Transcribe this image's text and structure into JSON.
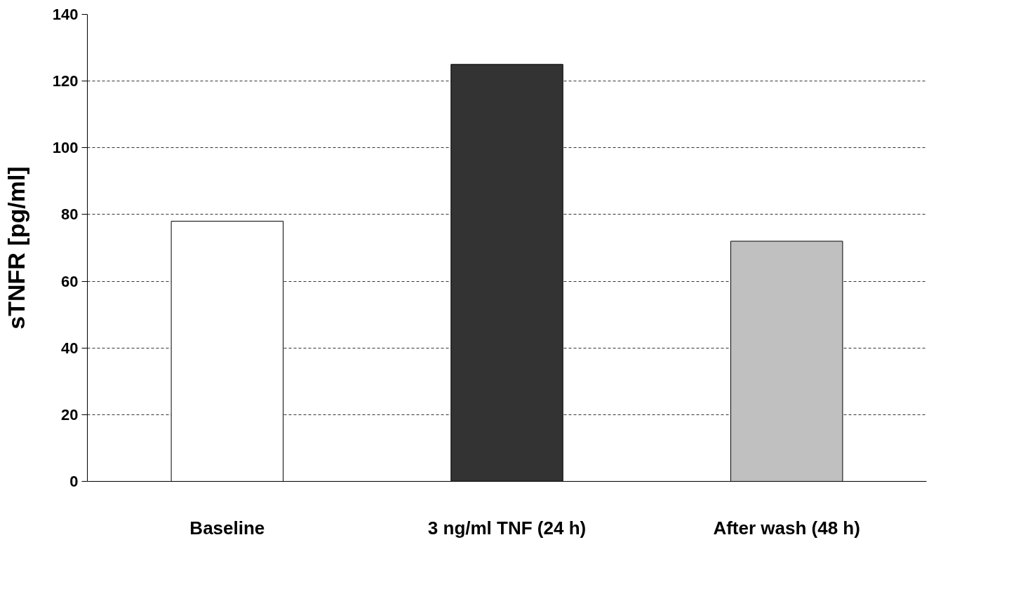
{
  "chart_data": {
    "type": "bar",
    "ylabel": "sTNFR [pg/ml]",
    "categories": [
      "Baseline",
      "3 ng/ml TNF (24 h)",
      "After wash (48 h)"
    ],
    "values": [
      78,
      125,
      72
    ],
    "colors": [
      "#ffffff",
      "#333333",
      "#c0c0c0"
    ],
    "ylim": [
      0,
      140
    ],
    "yticks": [
      0,
      20,
      40,
      60,
      80,
      100,
      120,
      140
    ],
    "grid": "y"
  }
}
